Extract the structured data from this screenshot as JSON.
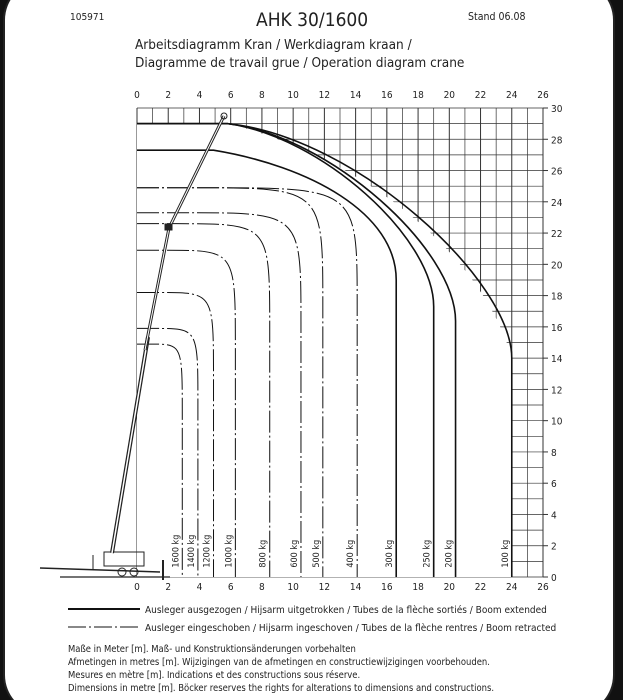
{
  "header": {
    "doc_number": "105971",
    "model": "AHK 30/1600",
    "stand": "Stand 06.08",
    "title_line1": "Arbeitsdiagramm Kran / Werkdiagram kraan /",
    "title_line2": "Diagramme de travail grue / Operation diagram crane"
  },
  "legend": {
    "extended": "Ausleger ausgezogen / Hijsarm uitgetrokken / Tubes de la flèche sortiés / Boom extended",
    "retracted": "Ausleger eingeschoben / Hijsarm ingeschoven / Tubes de la flèche rentres / Boom retracted"
  },
  "notes": [
    "Maße in Meter [m]. Maß- und Konstruktionsänderungen vorbehalten",
    "Afmetingen in metres [m]. Wijzigingen van de afmetingen en constructiewijzigingen voorbehouden.",
    "Mesures en mètre [m]. Indications et des constructions sous réserve.",
    "Dimensions in metre [m]. Böcker reserves the rights for alterations to dimensions and constructions."
  ],
  "chart_data": {
    "type": "line",
    "title": "Arbeitsdiagramm Kran / Operation diagram crane",
    "xlim": [
      0,
      26
    ],
    "ylim": [
      0,
      30
    ],
    "x_ticks": [
      "0",
      "2",
      "4",
      "6",
      "8",
      "10",
      "12",
      "14",
      "16",
      "18",
      "20",
      "22",
      "24",
      "26"
    ],
    "y_ticks": [
      "0",
      "2",
      "4",
      "6",
      "8",
      "10",
      "12",
      "14",
      "16",
      "18",
      "20",
      "22",
      "24",
      "26",
      "28",
      "30"
    ],
    "grid": true,
    "colors": {
      "line": "#111111",
      "grid": "#333333"
    },
    "series": [
      {
        "name": "1600 kg",
        "style": "retracted",
        "max_height": 14.9,
        "radius": 2.9
      },
      {
        "name": "1400 kg",
        "style": "retracted",
        "max_height": 15.9,
        "radius": 3.9
      },
      {
        "name": "1200 kg",
        "style": "retracted",
        "max_height": 18.2,
        "radius": 4.9
      },
      {
        "name": "1000 kg",
        "style": "retracted",
        "max_height": 20.9,
        "radius": 6.3
      },
      {
        "name": "800 kg",
        "style": "retracted",
        "max_height": 22.6,
        "radius": 8.5
      },
      {
        "name": "600 kg",
        "style": "retracted",
        "max_height": 23.3,
        "radius": 10.5
      },
      {
        "name": "500 kg",
        "style": "retracted",
        "max_height": 24.9,
        "radius": 11.9
      },
      {
        "name": "400 kg",
        "style": "retracted",
        "max_height": 24.9,
        "radius": 14.1
      },
      {
        "name": "300 kg",
        "style": "extended",
        "max_height": 27.3,
        "radius": 16.6
      },
      {
        "name": "250 kg",
        "style": "extended",
        "max_height": 29.0,
        "radius": 19.0
      },
      {
        "name": "200 kg",
        "style": "extended",
        "max_height": 29.0,
        "radius": 20.4
      },
      {
        "name": "100 kg",
        "style": "extended",
        "max_height": 29.0,
        "radius": 24.0
      }
    ]
  }
}
